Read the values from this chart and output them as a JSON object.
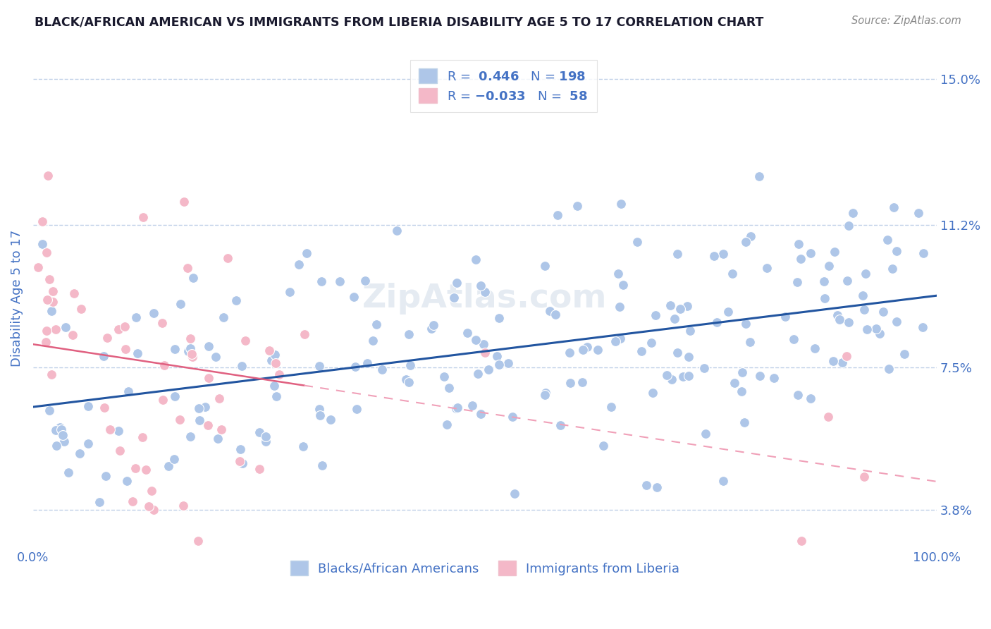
{
  "title": "BLACK/AFRICAN AMERICAN VS IMMIGRANTS FROM LIBERIA DISABILITY AGE 5 TO 17 CORRELATION CHART",
  "source": "Source: ZipAtlas.com",
  "ylabel": "Disability Age 5 to 17",
  "xlabel": "",
  "xlim": [
    0.0,
    1.0
  ],
  "ylim": [
    0.028,
    0.158
  ],
  "yticks": [
    0.038,
    0.075,
    0.112,
    0.15
  ],
  "ytick_labels": [
    "3.8%",
    "7.5%",
    "11.2%",
    "15.0%"
  ],
  "xtick_labels": [
    "0.0%",
    "100.0%"
  ],
  "blue_R": 0.446,
  "blue_N": 198,
  "pink_R": -0.033,
  "pink_N": 58,
  "blue_color": "#aec6e8",
  "pink_color": "#f4b8c8",
  "blue_line_color": "#2255a0",
  "pink_solid_color": "#e06080",
  "pink_dash_color": "#f0a0b8",
  "title_color": "#1a1a2e",
  "label_color": "#4472c4",
  "background_color": "#ffffff",
  "grid_color": "#c0d0e8",
  "legend_label1": "Blacks/African Americans",
  "legend_label2": "Immigrants from Liberia",
  "watermark": "ZipAtlas.com"
}
